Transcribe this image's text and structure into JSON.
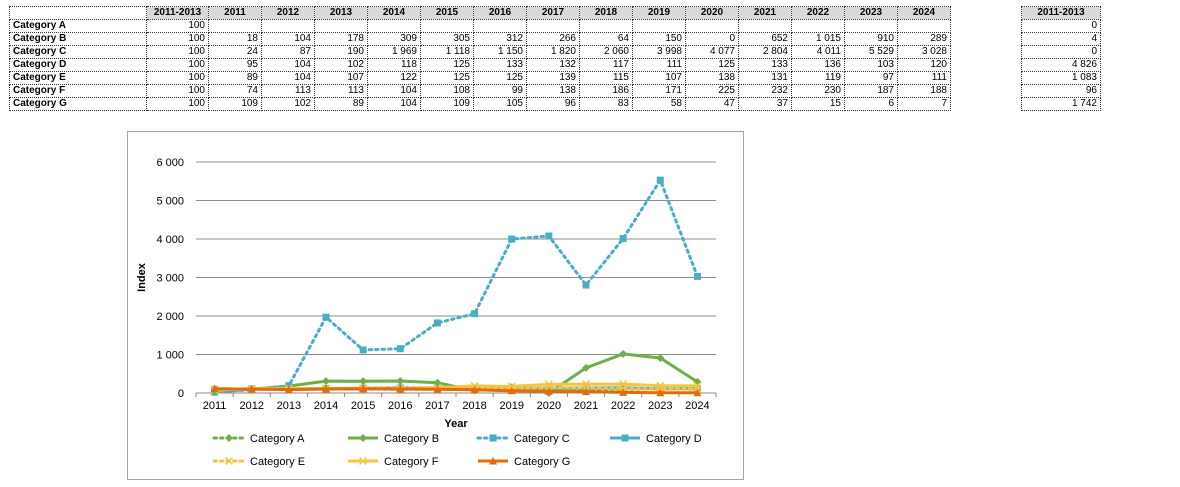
{
  "table": {
    "columns": [
      "2011-2013",
      "2011",
      "2012",
      "2013",
      "2014",
      "2015",
      "2016",
      "2017",
      "2018",
      "2019",
      "2020",
      "2021",
      "2022",
      "2023",
      "2024"
    ],
    "rows": [
      {
        "label": "Category A",
        "cells": [
          "100",
          "",
          "",
          "",
          "",
          "",
          "",
          "",
          "",
          "",
          "",
          "",
          "",
          "",
          ""
        ]
      },
      {
        "label": "Category B",
        "cells": [
          "100",
          "18",
          "104",
          "178",
          "309",
          "305",
          "312",
          "266",
          "64",
          "150",
          "0",
          "652",
          "1 015",
          "910",
          "289"
        ]
      },
      {
        "label": "Category C",
        "cells": [
          "100",
          "24",
          "87",
          "190",
          "1 969",
          "1 118",
          "1 150",
          "1 820",
          "2 060",
          "3 998",
          "4 077",
          "2 804",
          "4 011",
          "5 529",
          "3 028"
        ]
      },
      {
        "label": "Category D",
        "cells": [
          "100",
          "95",
          "104",
          "102",
          "118",
          "125",
          "133",
          "132",
          "117",
          "111",
          "125",
          "133",
          "136",
          "103",
          "120"
        ]
      },
      {
        "label": "Category E",
        "cells": [
          "100",
          "89",
          "104",
          "107",
          "122",
          "125",
          "125",
          "139",
          "115",
          "107",
          "138",
          "131",
          "119",
          "97",
          "111"
        ]
      },
      {
        "label": "Category F",
        "cells": [
          "100",
          "74",
          "113",
          "113",
          "104",
          "108",
          "99",
          "138",
          "186",
          "171",
          "225",
          "232",
          "230",
          "187",
          "188"
        ]
      },
      {
        "label": "Category G",
        "cells": [
          "100",
          "109",
          "102",
          "89",
          "104",
          "109",
          "105",
          "96",
          "83",
          "58",
          "47",
          "37",
          "15",
          "6",
          "7"
        ]
      }
    ]
  },
  "side_table": {
    "header": "2011-2013",
    "values": [
      "0",
      "4",
      "0",
      "4 826",
      "1 083",
      "96",
      "1 742"
    ]
  },
  "chart_data": {
    "type": "line",
    "title": "",
    "xlabel": "Year",
    "ylabel": "Index",
    "ylim": [
      0,
      6000
    ],
    "yticks": [
      0,
      1000,
      2000,
      3000,
      4000,
      5000,
      6000
    ],
    "ytick_labels": [
      "0",
      "1 000",
      "2 000",
      "3 000",
      "4 000",
      "5 000",
      "6 000"
    ],
    "grid": "horizontal",
    "legend_position": "bottom",
    "x": [
      "2011",
      "2012",
      "2013",
      "2014",
      "2015",
      "2016",
      "2017",
      "2018",
      "2019",
      "2020",
      "2021",
      "2022",
      "2023",
      "2024"
    ],
    "series": [
      {
        "name": "Category A",
        "color": "#70ad47",
        "dash": "dotted",
        "marker": "diamond",
        "values": [
          100,
          100,
          100,
          100,
          100,
          100,
          100,
          100,
          100,
          100,
          100,
          100,
          100,
          100
        ]
      },
      {
        "name": "Category B",
        "color": "#70ad47",
        "dash": "solid",
        "marker": "diamond",
        "values": [
          18,
          104,
          178,
          309,
          305,
          312,
          266,
          64,
          150,
          0,
          652,
          1015,
          910,
          289
        ]
      },
      {
        "name": "Category C",
        "color": "#4bacc6",
        "dash": "dotted",
        "marker": "square",
        "values": [
          24,
          87,
          190,
          1969,
          1118,
          1150,
          1820,
          2060,
          3998,
          4077,
          2804,
          4011,
          5529,
          3028
        ]
      },
      {
        "name": "Category D",
        "color": "#4bacc6",
        "dash": "solid",
        "marker": "square",
        "values": [
          95,
          104,
          102,
          118,
          125,
          133,
          132,
          117,
          111,
          125,
          133,
          136,
          103,
          120
        ]
      },
      {
        "name": "Category E",
        "color": "#f4c542",
        "dash": "dotted",
        "marker": "x",
        "values": [
          89,
          104,
          107,
          122,
          125,
          125,
          139,
          115,
          107,
          138,
          131,
          119,
          97,
          111
        ]
      },
      {
        "name": "Category F",
        "color": "#f4c542",
        "dash": "solid",
        "marker": "x",
        "values": [
          74,
          113,
          113,
          104,
          108,
          99,
          138,
          186,
          171,
          225,
          232,
          230,
          187,
          188
        ]
      },
      {
        "name": "Category G",
        "color": "#e36c0a",
        "dash": "solid",
        "marker": "triangle",
        "values": [
          109,
          102,
          89,
          104,
          109,
          105,
          96,
          83,
          58,
          47,
          37,
          15,
          6,
          7
        ]
      }
    ]
  }
}
